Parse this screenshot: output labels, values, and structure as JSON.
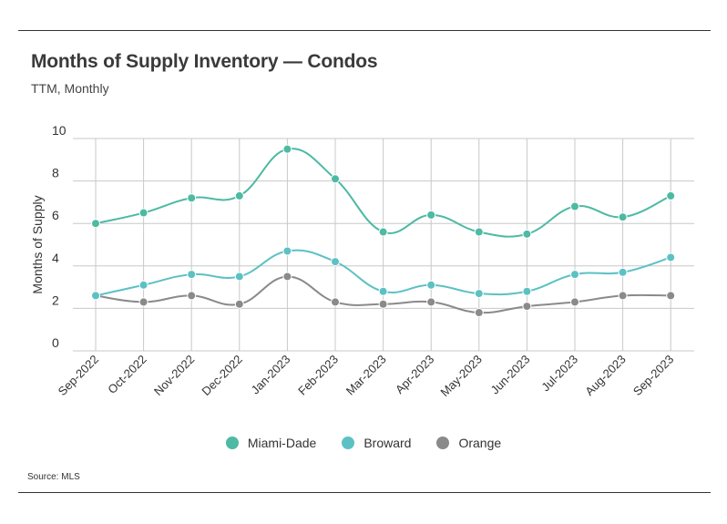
{
  "header": {
    "title": "Months of Supply Inventory — Condos",
    "subtitle": "TTM, Monthly"
  },
  "footer": {
    "source": "Source: MLS"
  },
  "colors": {
    "Miami-Dade": "#4dbaa3",
    "Broward": "#5cc1c4",
    "Orange": "#8a8a8a",
    "grid": "#c8c8c8"
  },
  "chart_data": {
    "type": "line",
    "title": "Months of Supply Inventory — Condos",
    "subtitle": "TTM, Monthly",
    "xlabel": "",
    "ylabel": "Months of Supply",
    "ylim": [
      0,
      10
    ],
    "yticks": [
      0,
      2,
      4,
      6,
      8,
      10
    ],
    "grid": true,
    "legend": "bottom-center",
    "categories": [
      "Sep-2022",
      "Oct-2022",
      "Nov-2022",
      "Dec-2022",
      "Jan-2023",
      "Feb-2023",
      "Mar-2023",
      "Apr-2023",
      "May-2023",
      "Jun-2023",
      "Jul-2023",
      "Aug-2023",
      "Sep-2023"
    ],
    "series": [
      {
        "name": "Miami-Dade",
        "values": [
          6.0,
          6.5,
          7.2,
          7.3,
          9.5,
          8.1,
          5.6,
          6.4,
          5.6,
          5.5,
          6.8,
          6.3,
          7.3
        ]
      },
      {
        "name": "Broward",
        "values": [
          2.6,
          3.1,
          3.6,
          3.5,
          4.7,
          4.2,
          2.8,
          3.1,
          2.7,
          2.8,
          3.6,
          3.7,
          4.4
        ]
      },
      {
        "name": "Orange",
        "values": [
          2.6,
          2.3,
          2.6,
          2.2,
          3.5,
          2.3,
          2.2,
          2.3,
          1.8,
          2.1,
          2.3,
          2.6,
          2.6
        ]
      }
    ]
  }
}
